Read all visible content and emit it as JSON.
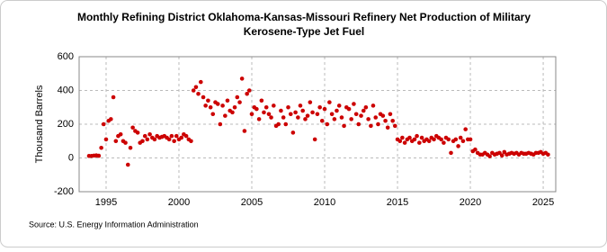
{
  "chart_data": {
    "type": "scatter",
    "title": [
      "Monthly Refining District Oklahoma-Kansas-Missouri Refinery Net Production of Military",
      "Kerosene-Type Jet Fuel"
    ],
    "y_label": "Thousand Barrels",
    "source": "Source: U.S. Energy Information Administration",
    "xlim": [
      1993.15,
      2025.86
    ],
    "ylim": [
      -200,
      600
    ],
    "xticks": [
      1995,
      2000,
      2005,
      2010,
      2015,
      2020,
      2025
    ],
    "yticks": [
      -200,
      0,
      200,
      400,
      600
    ],
    "grid": true,
    "series": [
      {
        "color": "#cc0000",
        "x": [
          1993.83,
          1994,
          1994.17,
          1994.33,
          1994.5,
          1994.67,
          1994.83,
          1995,
          1995.17,
          1995.33,
          1995.5,
          1995.67,
          1995.83,
          1996,
          1996.17,
          1996.33,
          1996.5,
          1996.67,
          1996.83,
          1997,
          1997.17,
          1997.33,
          1997.5,
          1997.67,
          1997.83,
          1998,
          1998.17,
          1998.33,
          1998.5,
          1998.67,
          1998.83,
          1999,
          1999.17,
          1999.33,
          1999.5,
          1999.67,
          1999.83,
          2000,
          2000.17,
          2000.33,
          2000.5,
          2000.67,
          2000.83,
          2001,
          2001.17,
          2001.33,
          2001.5,
          2001.67,
          2001.83,
          2002,
          2002.17,
          2002.33,
          2002.5,
          2002.67,
          2002.83,
          2003,
          2003.17,
          2003.33,
          2003.5,
          2003.67,
          2003.83,
          2004,
          2004.17,
          2004.33,
          2004.5,
          2004.67,
          2004.83,
          2005,
          2005.17,
          2005.33,
          2005.5,
          2005.67,
          2005.83,
          2006,
          2006.17,
          2006.33,
          2006.5,
          2006.67,
          2006.83,
          2007,
          2007.17,
          2007.33,
          2007.5,
          2007.67,
          2007.83,
          2008,
          2008.17,
          2008.33,
          2008.5,
          2008.67,
          2008.83,
          2009,
          2009.17,
          2009.33,
          2009.5,
          2009.67,
          2009.83,
          2010,
          2010.17,
          2010.33,
          2010.5,
          2010.67,
          2010.83,
          2011,
          2011.17,
          2011.33,
          2011.5,
          2011.67,
          2011.83,
          2012,
          2012.17,
          2012.33,
          2012.5,
          2012.67,
          2012.83,
          2013,
          2013.17,
          2013.33,
          2013.5,
          2013.67,
          2013.83,
          2014,
          2014.17,
          2014.33,
          2014.5,
          2014.67,
          2014.83,
          2015,
          2015.17,
          2015.33,
          2015.5,
          2015.67,
          2015.83,
          2016,
          2016.17,
          2016.33,
          2016.5,
          2016.67,
          2016.83,
          2017,
          2017.17,
          2017.33,
          2017.5,
          2017.67,
          2017.83,
          2018,
          2018.17,
          2018.33,
          2018.5,
          2018.67,
          2018.83,
          2019,
          2019.17,
          2019.33,
          2019.5,
          2019.67,
          2019.83,
          2020,
          2020.17,
          2020.33,
          2020.5,
          2020.67,
          2020.83,
          2021,
          2021.17,
          2021.33,
          2021.5,
          2021.67,
          2021.83,
          2022,
          2022.17,
          2022.33,
          2022.5,
          2022.67,
          2022.83,
          2023,
          2023.17,
          2023.33,
          2023.5,
          2023.67,
          2023.83,
          2024,
          2024.17,
          2024.33,
          2024.5,
          2024.67,
          2024.83,
          2025,
          2025.17,
          2025.33
        ],
        "values": [
          12,
          12,
          14,
          15,
          13,
          60,
          200,
          110,
          220,
          230,
          360,
          100,
          130,
          140,
          100,
          90,
          -40,
          60,
          180,
          160,
          150,
          90,
          100,
          130,
          110,
          140,
          120,
          110,
          130,
          120,
          125,
          130,
          120,
          110,
          130,
          100,
          130,
          110,
          120,
          140,
          130,
          110,
          100,
          400,
          420,
          380,
          450,
          360,
          310,
          340,
          300,
          260,
          330,
          320,
          200,
          310,
          250,
          340,
          280,
          270,
          300,
          360,
          330,
          470,
          160,
          380,
          400,
          260,
          300,
          290,
          230,
          340,
          270,
          300,
          260,
          240,
          310,
          190,
          200,
          280,
          240,
          200,
          300,
          260,
          150,
          270,
          240,
          310,
          280,
          230,
          250,
          330,
          270,
          110,
          260,
          300,
          220,
          290,
          200,
          330,
          260,
          230,
          280,
          310,
          240,
          190,
          300,
          290,
          230,
          320,
          260,
          200,
          250,
          280,
          300,
          230,
          190,
          310,
          240,
          200,
          260,
          250,
          220,
          180,
          260,
          220,
          190,
          110,
          100,
          120,
          90,
          110,
          120,
          100,
          110,
          130,
          90,
          120,
          100,
          110,
          100,
          120,
          110,
          130,
          120,
          110,
          90,
          120,
          110,
          30,
          100,
          110,
          70,
          120,
          100,
          170,
          110,
          110,
          40,
          50,
          30,
          20,
          20,
          30,
          20,
          10,
          30,
          20,
          25,
          30,
          15,
          35,
          20,
          25,
          30,
          25,
          30,
          20,
          30,
          25,
          25,
          30,
          25,
          20,
          30,
          30,
          35,
          25,
          30,
          20
        ]
      }
    ]
  }
}
